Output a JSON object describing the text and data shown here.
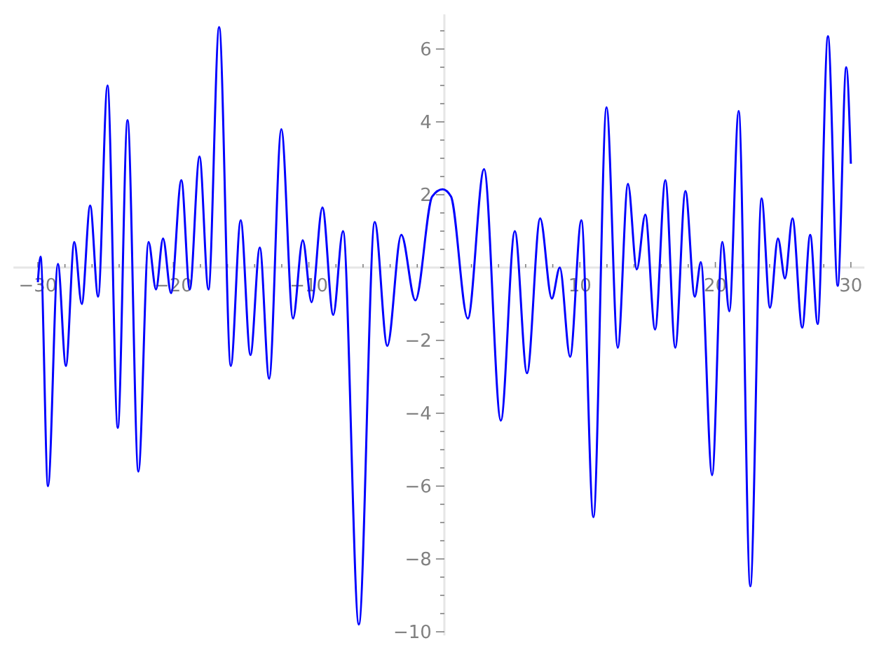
{
  "chart_data": {
    "type": "line",
    "x": [
      -30,
      -29.8,
      -29.25,
      -28.52,
      -27.93,
      -27.31,
      -26.76,
      -26.14,
      -25.55,
      -24.86,
      -24.1,
      -23.38,
      -22.58,
      -21.83,
      -21.28,
      -20.76,
      -20.17,
      -19.41,
      -18.79,
      -18.07,
      -17.41,
      -16.62,
      -15.76,
      -15.03,
      -14.31,
      -13.62,
      -12.93,
      -12.03,
      -11.17,
      -10.45,
      -9.8,
      -9.0,
      -8.2,
      -7.48,
      -6.31,
      -5.14,
      -4.21,
      -3.18,
      -2.14,
      -0.9,
      -0.13,
      0.49,
      1.73,
      2.93,
      4.17,
      5.2,
      6.1,
      7.07,
      7.93,
      8.52,
      9.28,
      10.11,
      11.0,
      11.97,
      12.8,
      13.55,
      14.2,
      14.83,
      15.55,
      16.31,
      17.04,
      17.79,
      18.48,
      18.93,
      19.76,
      20.51,
      21.03,
      21.72,
      22.58,
      23.41,
      24.03,
      24.62,
      25.14,
      25.69,
      26.41,
      27.0,
      27.55,
      28.31,
      29.03,
      29.66,
      30
    ],
    "series": [
      {
        "color": "#0000ff",
        "values": [
          -0.4,
          0.3,
          -6.0,
          0.1,
          -2.7,
          0.7,
          -1.0,
          1.7,
          -0.8,
          5.0,
          -4.4,
          4.05,
          -5.6,
          0.7,
          -0.6,
          0.8,
          -0.7,
          2.4,
          -0.6,
          3.05,
          -0.6,
          6.6,
          -2.7,
          1.3,
          -2.4,
          0.55,
          -3.05,
          3.8,
          -1.4,
          0.75,
          -0.95,
          1.65,
          -1.3,
          1.0,
          -9.8,
          1.25,
          -2.15,
          0.9,
          -0.9,
          1.95,
          2.15,
          1.95,
          -1.4,
          2.7,
          -4.2,
          1.0,
          -2.9,
          1.35,
          -0.85,
          0.0,
          -2.45,
          1.3,
          -6.85,
          4.4,
          -2.2,
          2.3,
          -0.05,
          1.45,
          -1.7,
          2.4,
          -2.2,
          2.1,
          -0.8,
          0.15,
          -5.7,
          0.7,
          -1.2,
          4.3,
          -8.75,
          1.9,
          -1.1,
          0.8,
          -0.3,
          1.35,
          -1.65,
          0.9,
          -1.55,
          6.35,
          -0.5,
          5.5,
          2.85
        ]
      }
    ],
    "xlim": [
      -31.8,
      31.0
    ],
    "ylim": [
      -10.1,
      6.95
    ],
    "xticks": [
      {
        "value": -30,
        "label": "−30"
      },
      {
        "value": -28,
        "label": null
      },
      {
        "value": -26,
        "label": null
      },
      {
        "value": -24,
        "label": null
      },
      {
        "value": -22,
        "label": null
      },
      {
        "value": -20,
        "label": "−20"
      },
      {
        "value": -18,
        "label": null
      },
      {
        "value": -16,
        "label": null
      },
      {
        "value": -14,
        "label": null
      },
      {
        "value": -12,
        "label": null
      },
      {
        "value": -10,
        "label": "−10"
      },
      {
        "value": -8,
        "label": null
      },
      {
        "value": -6,
        "label": null
      },
      {
        "value": -4,
        "label": null
      },
      {
        "value": -2,
        "label": null
      },
      {
        "value": 0,
        "label": null
      },
      {
        "value": 2,
        "label": null
      },
      {
        "value": 4,
        "label": null
      },
      {
        "value": 6,
        "label": null
      },
      {
        "value": 8,
        "label": null
      },
      10,
      {
        "value": 12,
        "label": null
      },
      {
        "value": 14,
        "label": null
      },
      {
        "value": 16,
        "label": null
      },
      {
        "value": 18,
        "label": null
      },
      20,
      {
        "value": 22,
        "label": null
      },
      {
        "value": 24,
        "label": null
      },
      {
        "value": 26,
        "label": null
      },
      {
        "value": 28,
        "label": null
      },
      30
    ],
    "yticks": [
      {
        "value": -10,
        "label": "−10"
      },
      {
        "value": -9.5,
        "label": null
      },
      {
        "value": -9,
        "label": null
      },
      {
        "value": -8.5,
        "label": null
      },
      {
        "value": -8,
        "label": "−8"
      },
      {
        "value": -7.5,
        "label": null
      },
      {
        "value": -7,
        "label": null
      },
      {
        "value": -6.5,
        "label": null
      },
      {
        "value": -6,
        "label": "−6"
      },
      {
        "value": -5.5,
        "label": null
      },
      {
        "value": -5,
        "label": null
      },
      {
        "value": -4.5,
        "label": null
      },
      {
        "value": -4,
        "label": "−4"
      },
      {
        "value": -3.5,
        "label": null
      },
      {
        "value": -3,
        "label": null
      },
      {
        "value": -2.5,
        "label": null
      },
      {
        "value": -2,
        "label": "−2"
      },
      {
        "value": -1.5,
        "label": null
      },
      {
        "value": -1,
        "label": null
      },
      {
        "value": -0.5,
        "label": null
      },
      {
        "value": 0,
        "label": null
      },
      {
        "value": 0.5,
        "label": null
      },
      {
        "value": 1,
        "label": null
      },
      {
        "value": 1.5,
        "label": null
      },
      2,
      {
        "value": 2.5,
        "label": null
      },
      {
        "value": 3,
        "label": null
      },
      {
        "value": 3.5,
        "label": null
      },
      4,
      {
        "value": 4.5,
        "label": null
      },
      {
        "value": 5,
        "label": null
      },
      {
        "value": 5.5,
        "label": null
      },
      6,
      {
        "value": 6.5,
        "label": null
      }
    ],
    "grid": false,
    "marker": "none",
    "line_style": "solid"
  }
}
